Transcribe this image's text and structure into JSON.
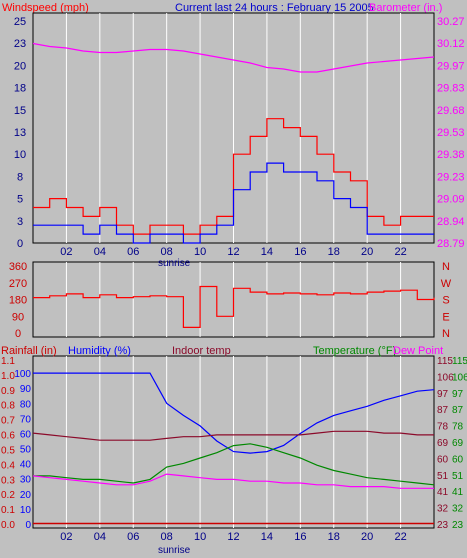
{
  "colors": {
    "background": "#c0c0c0",
    "plot_bg": "#c0c0c0",
    "grid": "#ffffff",
    "frame": "#000000",
    "axis_text": "#000088",
    "red": "#ff0000",
    "blue": "#0000ff",
    "magenta": "#ff00ff",
    "maroon": "#8b0a2a",
    "green": "#008800",
    "dark_red": "#cc0000"
  },
  "chart_data": [
    {
      "type": "line",
      "title": "Current last 24 hours : February 15 2005",
      "left_axis_label": "Windspeed (mph)",
      "right_axis_label": "Barometer (in.)",
      "x_ticks": [
        "02",
        "04",
        "06",
        "08",
        "10",
        "12",
        "14",
        "16",
        "18",
        "20",
        "22"
      ],
      "x_annotation": "sunrise",
      "y_left": {
        "ticks": [
          "0",
          "3",
          "5",
          "8",
          "10",
          "13",
          "15",
          "18",
          "20",
          "23",
          "25"
        ],
        "range": [
          0,
          25
        ]
      },
      "y_right": {
        "ticks": [
          "28.79",
          "28.94",
          "29.09",
          "29.23",
          "29.38",
          "29.53",
          "29.68",
          "29.83",
          "29.97",
          "30.12",
          "30.27"
        ],
        "range": [
          28.79,
          30.27
        ]
      },
      "hours": [
        0,
        1,
        2,
        3,
        4,
        5,
        6,
        7,
        8,
        9,
        10,
        11,
        12,
        13,
        14,
        15,
        16,
        17,
        18,
        19,
        20,
        21,
        22,
        23,
        24
      ],
      "series": [
        {
          "color": "red",
          "axis": "left",
          "values": [
            4,
            5,
            4,
            3,
            4,
            2,
            1,
            2,
            2,
            1,
            2,
            3,
            10,
            12,
            14,
            13,
            12,
            10,
            8,
            7,
            3,
            2,
            3,
            3,
            3
          ]
        },
        {
          "color": "blue",
          "axis": "left",
          "values": [
            2,
            2,
            2,
            1,
            2,
            1,
            0,
            1,
            1,
            0,
            1,
            2,
            6,
            8,
            9,
            8,
            8,
            7,
            5,
            4,
            1,
            1,
            1,
            1,
            1
          ]
        },
        {
          "color": "magenta",
          "axis": "right",
          "values": [
            30.12,
            30.1,
            30.09,
            30.07,
            30.06,
            30.06,
            30.07,
            30.08,
            30.08,
            30.07,
            30.05,
            30.03,
            30.01,
            29.99,
            29.96,
            29.95,
            29.93,
            29.93,
            29.95,
            29.97,
            29.99,
            30.0,
            30.01,
            30.02,
            30.03
          ]
        }
      ]
    },
    {
      "type": "line",
      "left_ticks": [
        "0",
        "90",
        "180",
        "270",
        "360"
      ],
      "right_ticks": [
        "N",
        "E",
        "S",
        "W",
        "N"
      ],
      "range": [
        0,
        360
      ],
      "hours": [
        0,
        1,
        2,
        3,
        4,
        5,
        6,
        7,
        8,
        9,
        10,
        11,
        12,
        13,
        14,
        15,
        16,
        17,
        18,
        19,
        20,
        21,
        22,
        23,
        24
      ],
      "series": [
        {
          "color": "red",
          "values": [
            190,
            200,
            210,
            190,
            205,
            190,
            195,
            200,
            195,
            30,
            250,
            90,
            240,
            220,
            210,
            215,
            210,
            205,
            215,
            210,
            220,
            225,
            230,
            180,
            190
          ]
        }
      ]
    },
    {
      "type": "line",
      "labels": {
        "rainfall": "Rainfall (in)",
        "humidity": "Humidity (%)",
        "indoor": "Indoor temp",
        "temperature": "Temperature (°F)",
        "dew": "Dew Point"
      },
      "x_ticks": [
        "02",
        "04",
        "06",
        "08",
        "10",
        "12",
        "14",
        "16",
        "18",
        "20",
        "22"
      ],
      "x_annotation": "sunrise",
      "rain_ticks": [
        "0.0",
        "0.1",
        "0.2",
        "0.3",
        "0.4",
        "0.5",
        "0.6",
        "0.7",
        "0.8",
        "0.9",
        "1.0",
        "1.1"
      ],
      "humidity_ticks": [
        "0",
        "10",
        "20",
        "30",
        "40",
        "50",
        "60",
        "70",
        "80",
        "90",
        "100"
      ],
      "temp_ticks_a": [
        "23",
        "32",
        "41",
        "51",
        "60",
        "69",
        "78",
        "87",
        "97",
        "106",
        "115"
      ],
      "temp_ticks_b": [
        "23",
        "32",
        "41",
        "51",
        "60",
        "69",
        "78",
        "87",
        "97",
        "106",
        "115"
      ],
      "hours": [
        0,
        1,
        2,
        3,
        4,
        5,
        6,
        7,
        8,
        9,
        10,
        11,
        12,
        13,
        14,
        15,
        16,
        17,
        18,
        19,
        20,
        21,
        22,
        23,
        24
      ],
      "series": [
        {
          "name": "Humidity (%)",
          "color": "blue",
          "values": [
            100,
            100,
            100,
            100,
            100,
            100,
            100,
            100,
            80,
            72,
            65,
            55,
            48,
            47,
            48,
            52,
            60,
            67,
            72,
            75,
            78,
            82,
            85,
            88,
            89
          ]
        },
        {
          "name": "Temperature (°F)",
          "color": "green",
          "values": [
            50,
            50,
            49,
            48,
            48,
            47,
            46,
            48,
            55,
            57,
            60,
            63,
            67,
            68,
            66,
            63,
            60,
            56,
            53,
            51,
            49,
            48,
            47,
            46,
            45
          ]
        },
        {
          "name": "Dew Point",
          "color": "magenta",
          "values": [
            50,
            49,
            48,
            47,
            46,
            45,
            45,
            47,
            51,
            50,
            49,
            48,
            48,
            47,
            47,
            46,
            46,
            45,
            45,
            44,
            44,
            44,
            43,
            43,
            43
          ]
        },
        {
          "name": "Indoor temp",
          "color": "maroon",
          "values": [
            74,
            73,
            72,
            71,
            70,
            70,
            70,
            70,
            71,
            72,
            72,
            73,
            73,
            73,
            73,
            73,
            73,
            74,
            75,
            75,
            75,
            74,
            74,
            73,
            73
          ]
        },
        {
          "name": "Rainfall (in)",
          "color": "dark_red",
          "values": [
            0,
            0,
            0,
            0,
            0,
            0,
            0,
            0,
            0,
            0,
            0,
            0,
            0,
            0,
            0,
            0,
            0,
            0,
            0,
            0,
            0,
            0,
            0,
            0,
            0
          ]
        }
      ]
    }
  ]
}
